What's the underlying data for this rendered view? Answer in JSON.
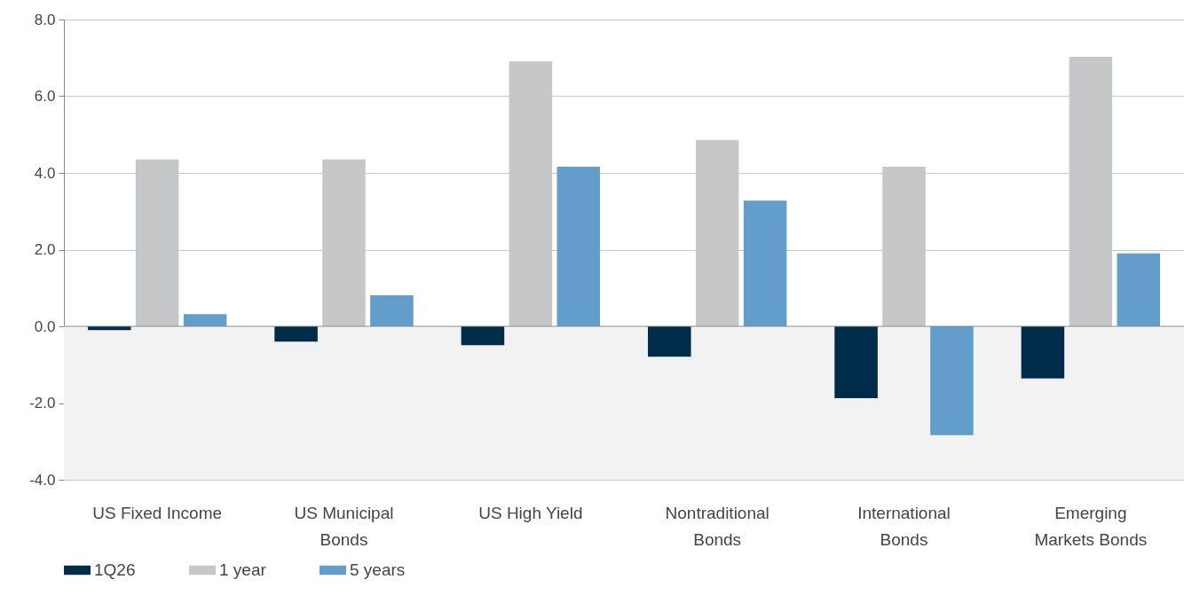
{
  "chart_data": {
    "type": "bar",
    "categories": [
      "US Fixed Income",
      "US Municipal Bonds",
      "US High Yield",
      "Nontraditional Bonds",
      "International Bonds",
      "Emerging Markets Bonds"
    ],
    "series": [
      {
        "name": "1Q26",
        "color": "#002b49",
        "values": [
          -0.1,
          -0.4,
          -0.49,
          -0.79,
          -1.87,
          -1.36
        ]
      },
      {
        "name": "1 year",
        "color": "#c6c7c8",
        "values": [
          4.35,
          4.35,
          6.91,
          4.86,
          4.16,
          7.03
        ]
      },
      {
        "name": "5 years",
        "color": "#629ec9",
        "values": [
          0.32,
          0.81,
          4.16,
          3.28,
          -2.84,
          1.9
        ]
      }
    ],
    "ylim": [
      -4,
      8
    ],
    "yticks": [
      {
        "value": -4,
        "label": "-4.0"
      },
      {
        "value": -2,
        "label": "-2.0"
      },
      {
        "value": 0,
        "label": "0.0"
      },
      {
        "value": 2,
        "label": "2.0"
      },
      {
        "value": 4,
        "label": "4.0"
      },
      {
        "value": 6,
        "label": "6.0"
      },
      {
        "value": 8,
        "label": "8.0"
      }
    ],
    "bands": [
      {
        "axis": "y",
        "from": -4,
        "to": 0,
        "color": "#f2f2f2"
      }
    ],
    "grid": "y",
    "legend": "bottom"
  }
}
